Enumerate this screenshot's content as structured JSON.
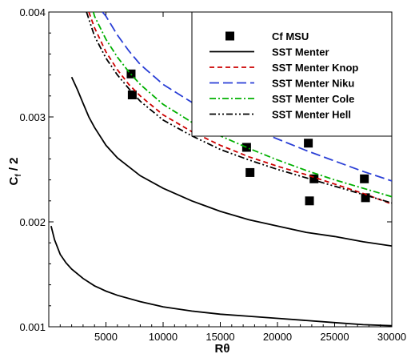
{
  "chart_data": {
    "type": "line",
    "title": "",
    "xlabel": "Rθ",
    "ylabel": "C",
    "ylabel_sub": "f",
    "ylabel_suffix": " / 2",
    "xlim": [
      0,
      30000
    ],
    "ylim": [
      0.001,
      0.004
    ],
    "x_ticks": [
      5000,
      10000,
      15000,
      20000,
      25000,
      30000
    ],
    "x_tick_labels": [
      "5000",
      "10000",
      "15000",
      "20000",
      "25000",
      "30000"
    ],
    "y_ticks": [
      0.001,
      0.002,
      0.003,
      0.004
    ],
    "y_tick_labels": [
      "0.001",
      "0.002",
      "0.003",
      "0.004"
    ],
    "grid": false,
    "legend_position": "top-right",
    "series": [
      {
        "name": "Cf MSU",
        "kind": "scatter",
        "color": "#000000",
        "x": [
          7200,
          7300,
          14000,
          17300,
          17600,
          22700,
          22800,
          23200,
          27600,
          27700
        ],
        "y": [
          0.00341,
          0.00321,
          0.00287,
          0.00271,
          0.00247,
          0.00275,
          0.0022,
          0.00241,
          0.00241,
          0.00223
        ]
      },
      {
        "name": "SST Menter",
        "kind": "line",
        "style": "solid",
        "color": "#000000",
        "x": [
          2000,
          2500,
          3000,
          3500,
          4000,
          5000,
          6000,
          8000,
          10000,
          12500,
          15000,
          17500,
          20000,
          22500,
          25000,
          27500,
          30000
        ],
        "y": [
          0.00338,
          0.00326,
          0.00313,
          0.003,
          0.0029,
          0.00273,
          0.00261,
          0.00244,
          0.00232,
          0.0022,
          0.0021,
          0.00202,
          0.00196,
          0.0019,
          0.00186,
          0.00181,
          0.00177
        ]
      },
      {
        "name": "",
        "kind": "line",
        "style": "solid",
        "color": "#000000",
        "x": [
          200,
          500,
          1000,
          1500,
          2000,
          3000,
          4000,
          5000,
          6000,
          8000,
          10000,
          12500,
          15000,
          17500,
          20000,
          22500,
          25000,
          27500,
          30000
        ],
        "y": [
          0.00196,
          0.00183,
          0.00169,
          0.00161,
          0.00155,
          0.00146,
          0.00139,
          0.00134,
          0.0013,
          0.00124,
          0.00119,
          0.00115,
          0.00112,
          0.0011,
          0.00108,
          0.00106,
          0.00104,
          0.00102,
          0.00101
        ]
      },
      {
        "name": "SST Menter Knop",
        "kind": "line",
        "style": "dashed",
        "color": "#cc0000",
        "x": [
          3500,
          4000,
          5000,
          6000,
          7000,
          8000,
          10000,
          12500,
          15000,
          17500,
          20000,
          22500,
          25000,
          27500,
          30000
        ],
        "y": [
          0.004,
          0.00385,
          0.00362,
          0.00345,
          0.00331,
          0.0032,
          0.00302,
          0.00286,
          0.00273,
          0.00262,
          0.00253,
          0.00245,
          0.00236,
          0.00227,
          0.00217
        ]
      },
      {
        "name": "SST Menter Niku",
        "kind": "line",
        "style": "longdash",
        "color": "#2a3fd6",
        "x": [
          4700,
          5000,
          6000,
          7000,
          8000,
          10000,
          12500,
          15000,
          17500,
          20000,
          22500,
          25000,
          27500,
          30000
        ],
        "y": [
          0.004,
          0.00396,
          0.00378,
          0.00363,
          0.0035,
          0.00331,
          0.00314,
          0.00301,
          0.0029,
          0.00279,
          0.00268,
          0.00258,
          0.00248,
          0.00239
        ]
      },
      {
        "name": "SST Menter Cole",
        "kind": "line",
        "style": "dashdot",
        "color": "#00b000",
        "x": [
          3900,
          4000,
          5000,
          6000,
          7000,
          8000,
          10000,
          12500,
          15000,
          17500,
          20000,
          22500,
          25000,
          27500,
          30000
        ],
        "y": [
          0.004,
          0.00396,
          0.00374,
          0.00357,
          0.00343,
          0.00331,
          0.00312,
          0.00295,
          0.00282,
          0.0027,
          0.00259,
          0.00249,
          0.0024,
          0.00232,
          0.00224
        ]
      },
      {
        "name": "SST Menter Hell",
        "kind": "line",
        "style": "dashdotdot",
        "color": "#000000",
        "x": [
          3300,
          4000,
          5000,
          6000,
          7000,
          8000,
          10000,
          12500,
          15000,
          17500,
          20000,
          22500,
          25000,
          27500,
          30000
        ],
        "y": [
          0.004,
          0.00377,
          0.00356,
          0.0034,
          0.00327,
          0.00315,
          0.00297,
          0.00282,
          0.00269,
          0.00259,
          0.0025,
          0.00242,
          0.00234,
          0.00226,
          0.00218
        ]
      }
    ]
  }
}
